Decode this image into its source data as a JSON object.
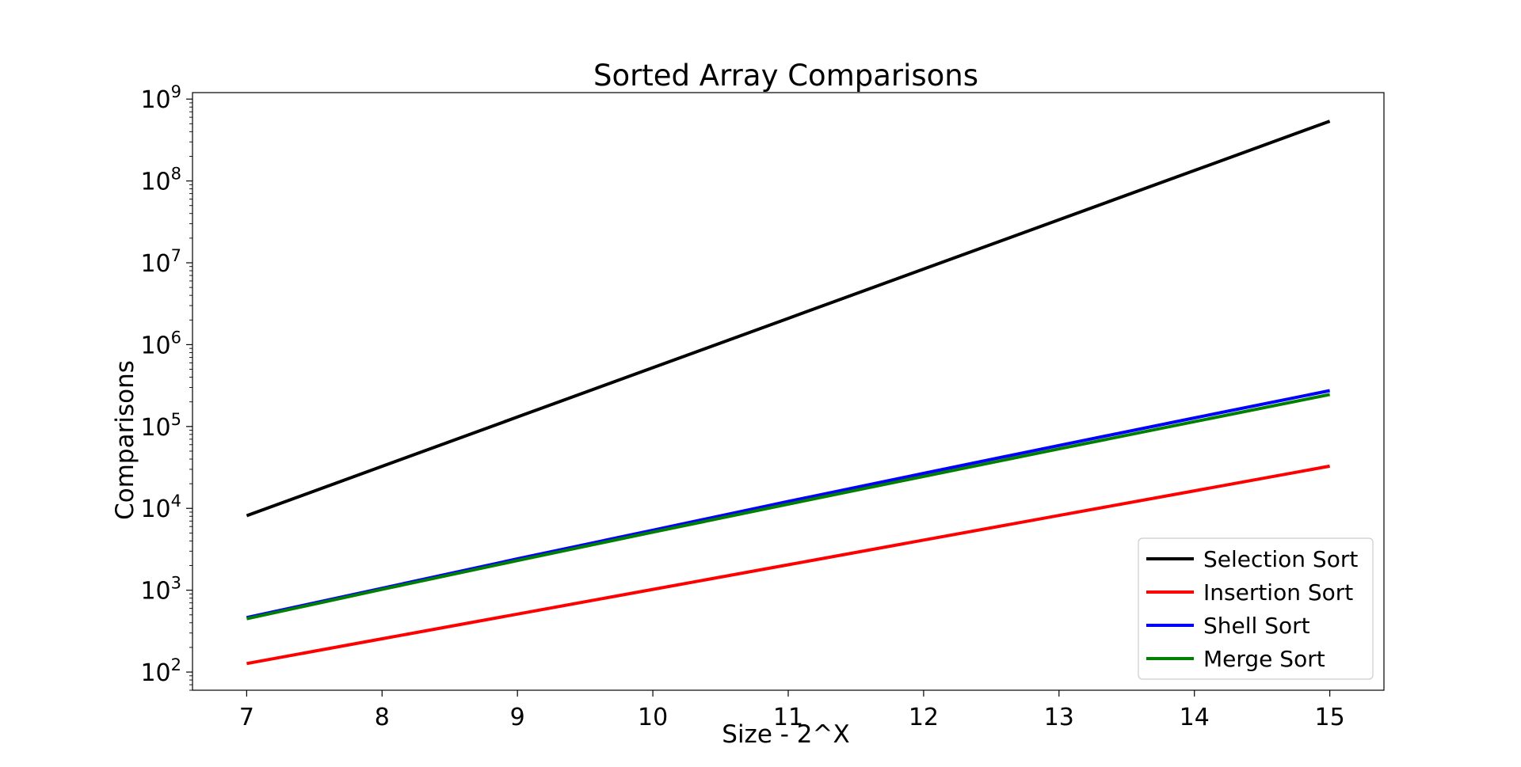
{
  "chart_data": {
    "type": "line",
    "title": "Sorted Array Comparisons",
    "xlabel": "Size - 2^X",
    "ylabel": "Comparisons",
    "x": [
      7,
      8,
      9,
      10,
      11,
      12,
      13,
      14,
      15
    ],
    "xlim": [
      6.6,
      15.4
    ],
    "ylim": [
      60,
      1200000000
    ],
    "yscale": "log",
    "x_ticks": [
      "7",
      "8",
      "9",
      "10",
      "11",
      "12",
      "13",
      "14",
      "15"
    ],
    "y_ticks": [
      {
        "value": 100,
        "base": "10",
        "exp": "2"
      },
      {
        "value": 1000,
        "base": "10",
        "exp": "3"
      },
      {
        "value": 10000,
        "base": "10",
        "exp": "4"
      },
      {
        "value": 100000,
        "base": "10",
        "exp": "5"
      },
      {
        "value": 1000000,
        "base": "10",
        "exp": "6"
      },
      {
        "value": 10000000,
        "base": "10",
        "exp": "7"
      },
      {
        "value": 100000000,
        "base": "10",
        "exp": "8"
      },
      {
        "value": 1000000000,
        "base": "10",
        "exp": "9"
      }
    ],
    "grid": false,
    "legend_position": "lower-right",
    "series": [
      {
        "name": "Selection Sort",
        "color": "#000000",
        "values": [
          8128,
          32640,
          130816,
          523776,
          2096128,
          8386560,
          33550336,
          134209536,
          536854528
        ]
      },
      {
        "name": "Insertion Sort",
        "color": "#ff0000",
        "values": [
          127,
          255,
          511,
          1023,
          2047,
          4095,
          8191,
          16383,
          32767
        ]
      },
      {
        "name": "Shell Sort",
        "color": "#0000ff",
        "values": [
          463,
          1055,
          2419,
          5419,
          12135,
          26767,
          58687,
          127315,
          274619
        ]
      },
      {
        "name": "Merge Sort",
        "color": "#008000",
        "values": [
          448,
          1024,
          2304,
          5120,
          11264,
          24576,
          53248,
          114688,
          245760
        ]
      }
    ]
  }
}
